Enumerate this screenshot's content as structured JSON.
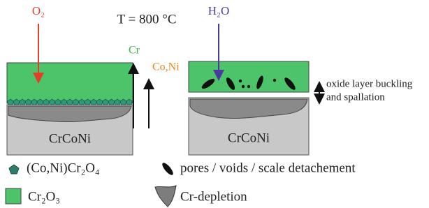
{
  "left_panel": {
    "oxidant": "O₂",
    "diffusion_up": "Cr",
    "diffusion_up_2": "Co,Ni",
    "substrate": "CrCoNi"
  },
  "temperature": "T = 800 °C",
  "right_panel": {
    "oxidant": "H₂O",
    "substrate": "CrCoNi",
    "note_line_1": "oxide layer buckling",
    "note_line_2": "and spallation"
  },
  "legend": {
    "spinel": "(Co,Ni)Cr₂O₄",
    "pores": "pores / voids / scale detachement",
    "chromia": "Cr₂O₃",
    "depletion": "Cr-depletion"
  }
}
